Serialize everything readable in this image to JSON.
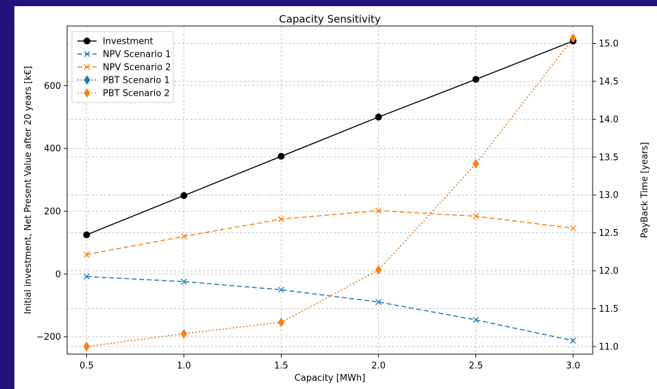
{
  "chart_data": {
    "type": "line",
    "title": "Capacity Sensitivity",
    "xlabel": "Capacity [MWh]",
    "ylabel_left": "Initial investment, Net Present Value after 20 years [k€]",
    "ylabel_right": "PayBack Time [years]",
    "x": [
      0.5,
      1.0,
      1.5,
      2.0,
      2.5,
      3.0
    ],
    "xlim": [
      0.4,
      3.1
    ],
    "ylim_left": [
      -255,
      790
    ],
    "ylim_right": [
      10.9,
      15.23
    ],
    "x_ticks": [
      "0.5",
      "1.0",
      "1.5",
      "2.0",
      "2.5",
      "3.0"
    ],
    "x_tick_values": [
      0.5,
      1.0,
      1.5,
      2.0,
      2.5,
      3.0
    ],
    "y_left_ticks": [
      "−200",
      "0",
      "200",
      "400",
      "600"
    ],
    "y_left_tick_values": [
      -200,
      0,
      200,
      400,
      600
    ],
    "y_right_ticks": [
      "11.0",
      "11.5",
      "12.0",
      "12.5",
      "13.0",
      "13.5",
      "14.0",
      "14.5",
      "15.0"
    ],
    "y_right_tick_values": [
      11.0,
      11.5,
      12.0,
      12.5,
      13.0,
      13.5,
      14.0,
      14.5,
      15.0
    ],
    "grid": true,
    "legend_position": "top-left",
    "series": [
      {
        "name": "Investment",
        "axis": "left",
        "color": "#000000",
        "dash": "",
        "marker": "circle",
        "values": [
          125,
          250,
          375,
          500,
          620,
          742
        ]
      },
      {
        "name": "NPV Scenario 1",
        "axis": "left",
        "color": "#1f77b4",
        "dash": "7,4",
        "marker": "x",
        "values": [
          -8,
          -24,
          -50,
          -89,
          -146,
          -212
        ]
      },
      {
        "name": "NPV Scenario 2",
        "axis": "left",
        "color": "#ff7f0e",
        "dash": "7,4",
        "marker": "x",
        "values": [
          62,
          120,
          175,
          202,
          184,
          146
        ]
      },
      {
        "name": "PBT Scenario 1",
        "axis": "right",
        "color": "#1f77b4",
        "dash": "2,3",
        "marker": "diamond",
        "values": [
          11.0,
          11.17,
          11.32,
          12.01,
          13.41,
          15.07
        ]
      },
      {
        "name": "PBT Scenario 2",
        "axis": "right",
        "color": "#ff7f0e",
        "dash": "2,3",
        "marker": "diamond",
        "values": [
          11.0,
          11.17,
          11.32,
          12.01,
          13.41,
          15.07
        ]
      }
    ]
  }
}
